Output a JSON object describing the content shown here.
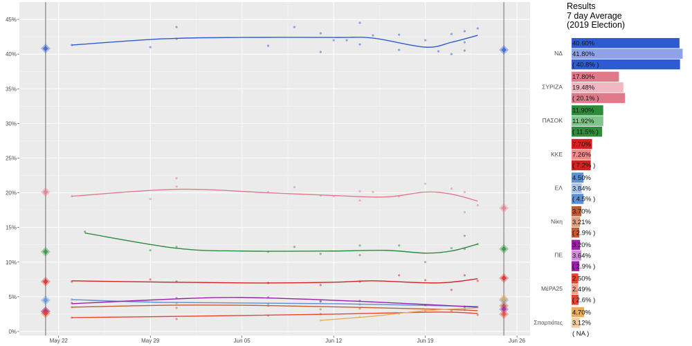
{
  "chart_data": {
    "type": "line",
    "title_lines": [
      "Results",
      "7 day Average",
      "(2019 Election)"
    ],
    "y_ticks": [
      0,
      5,
      10,
      15,
      20,
      25,
      30,
      35,
      40,
      45
    ],
    "y_tick_format": "%",
    "ylim": [
      -0.6,
      47.5
    ],
    "x_ticks": [
      {
        "date": "2023-05-22",
        "label": "May 22"
      },
      {
        "date": "2023-05-29",
        "label": "May 29"
      },
      {
        "date": "2023-06-05",
        "label": "Jun 05"
      },
      {
        "date": "2023-06-12",
        "label": "Jun 12"
      },
      {
        "date": "2023-06-19",
        "label": "Jun 19"
      },
      {
        "date": "2023-06-26",
        "label": "Jun 26"
      }
    ],
    "xlim": [
      "2023-05-19",
      "2023-06-27"
    ],
    "grid": true,
    "vlines": [
      "2023-05-21",
      "2023-06-25"
    ],
    "series": [
      {
        "name": "ΝΔ",
        "color": "#2f5bd0",
        "light": "#8ea2e6",
        "prev": 40.8,
        "result": 40.6,
        "trend": [
          [
            "2023-05-23",
            41.3
          ],
          [
            "2023-05-30",
            42.2
          ],
          [
            "2023-06-05",
            42.4
          ],
          [
            "2023-06-12",
            42.4
          ],
          [
            "2023-06-15",
            42.3
          ],
          [
            "2023-06-19",
            41.0
          ],
          [
            "2023-06-21",
            41.7
          ],
          [
            "2023-06-23",
            42.7
          ]
        ],
        "points": [
          [
            "2023-05-23",
            41.3
          ],
          [
            "2023-05-29",
            41.0
          ],
          [
            "2023-05-31",
            43.9
          ],
          [
            "2023-05-31",
            42.2
          ],
          [
            "2023-06-07",
            41.2
          ],
          [
            "2023-06-09",
            43.9
          ],
          [
            "2023-06-11",
            43.0
          ],
          [
            "2023-06-11",
            40.3
          ],
          [
            "2023-06-12",
            42.0
          ],
          [
            "2023-06-13",
            42.0
          ],
          [
            "2023-06-14",
            44.5
          ],
          [
            "2023-06-14",
            41.4
          ],
          [
            "2023-06-15",
            42.7
          ],
          [
            "2023-06-17",
            42.8
          ],
          [
            "2023-06-17",
            40.6
          ],
          [
            "2023-06-19",
            42.0
          ],
          [
            "2023-06-20",
            40.4
          ],
          [
            "2023-06-21",
            42.9
          ],
          [
            "2023-06-21",
            40.0
          ],
          [
            "2023-06-22",
            43.3
          ],
          [
            "2023-06-22",
            40.5
          ],
          [
            "2023-06-22",
            41.7
          ],
          [
            "2023-06-23",
            43.7
          ]
        ]
      },
      {
        "name": "ΣΥΡΙΖΑ",
        "color": "#e07a8b",
        "light": "#f2b8c2",
        "prev": 20.1,
        "result": 17.8,
        "trend": [
          [
            "2023-05-23",
            19.5
          ],
          [
            "2023-05-31",
            20.5
          ],
          [
            "2023-06-07",
            20.0
          ],
          [
            "2023-06-12",
            19.6
          ],
          [
            "2023-06-16",
            19.4
          ],
          [
            "2023-06-19",
            20.1
          ],
          [
            "2023-06-21",
            19.8
          ],
          [
            "2023-06-23",
            18.8
          ]
        ],
        "points": [
          [
            "2023-05-23",
            19.5
          ],
          [
            "2023-05-29",
            19.1
          ],
          [
            "2023-05-31",
            22.1
          ],
          [
            "2023-05-31",
            20.9
          ],
          [
            "2023-06-07",
            20.1
          ],
          [
            "2023-06-09",
            20.8
          ],
          [
            "2023-06-11",
            19.6
          ],
          [
            "2023-06-12",
            19.5
          ],
          [
            "2023-06-14",
            20.2
          ],
          [
            "2023-06-14",
            18.9
          ],
          [
            "2023-06-15",
            20.1
          ],
          [
            "2023-06-17",
            19.5
          ],
          [
            "2023-06-19",
            21.3
          ],
          [
            "2023-06-21",
            20.6
          ],
          [
            "2023-06-22",
            20.1
          ],
          [
            "2023-06-22",
            17.2
          ],
          [
            "2023-06-23",
            18.2
          ]
        ]
      },
      {
        "name": "ΠΑΣΟΚ",
        "color": "#2e8b3a",
        "light": "#7fc48a",
        "prev": 11.5,
        "result": 11.9,
        "trend": [
          [
            "2023-05-24",
            14.2
          ],
          [
            "2023-05-31",
            12.0
          ],
          [
            "2023-06-05",
            11.6
          ],
          [
            "2023-06-12",
            11.6
          ],
          [
            "2023-06-16",
            11.7
          ],
          [
            "2023-06-19",
            11.3
          ],
          [
            "2023-06-21",
            11.6
          ],
          [
            "2023-06-23",
            12.6
          ]
        ],
        "points": [
          [
            "2023-05-24",
            14.4
          ],
          [
            "2023-05-29",
            11.7
          ],
          [
            "2023-05-31",
            12.2
          ],
          [
            "2023-06-07",
            11.5
          ],
          [
            "2023-06-09",
            12.2
          ],
          [
            "2023-06-11",
            11.2
          ],
          [
            "2023-06-14",
            12.4
          ],
          [
            "2023-06-14",
            11.0
          ],
          [
            "2023-06-17",
            12.4
          ],
          [
            "2023-06-19",
            10.0
          ],
          [
            "2023-06-21",
            12.0
          ],
          [
            "2023-06-22",
            13.8
          ],
          [
            "2023-06-22",
            11.9
          ],
          [
            "2023-06-23",
            12.6
          ]
        ]
      },
      {
        "name": "ΚΚΕ",
        "color": "#d42020",
        "light": "#ee8a8a",
        "prev": 7.2,
        "result": 7.7,
        "trend": [
          [
            "2023-05-23",
            7.3
          ],
          [
            "2023-06-05",
            7.0
          ],
          [
            "2023-06-12",
            7.1
          ],
          [
            "2023-06-15",
            7.3
          ],
          [
            "2023-06-20",
            7.0
          ],
          [
            "2023-06-23",
            7.6
          ]
        ],
        "points": [
          [
            "2023-05-23",
            7.2
          ],
          [
            "2023-05-29",
            7.5
          ],
          [
            "2023-05-31",
            7.2
          ],
          [
            "2023-06-07",
            7.0
          ],
          [
            "2023-06-11",
            6.7
          ],
          [
            "2023-06-14",
            7.2
          ],
          [
            "2023-06-17",
            8.1
          ],
          [
            "2023-06-19",
            7.4
          ],
          [
            "2023-06-21",
            6.0
          ],
          [
            "2023-06-22",
            8.1
          ],
          [
            "2023-06-23",
            7.3
          ]
        ]
      },
      {
        "name": "ΕΛ",
        "color": "#5b8fd6",
        "light": "#a8c4ea",
        "prev": 4.5,
        "result": 4.5,
        "trend": [
          [
            "2023-05-23",
            4.6
          ],
          [
            "2023-05-30",
            4.2
          ],
          [
            "2023-06-12",
            4.0
          ],
          [
            "2023-06-23",
            3.6
          ]
        ],
        "points": [
          [
            "2023-05-23",
            4.6
          ],
          [
            "2023-05-31",
            4.1
          ],
          [
            "2023-06-07",
            4.0
          ],
          [
            "2023-06-11",
            4.4
          ],
          [
            "2023-06-14",
            3.9
          ],
          [
            "2023-06-19",
            3.8
          ],
          [
            "2023-06-22",
            3.4
          ],
          [
            "2023-06-23",
            3.5
          ]
        ]
      },
      {
        "name": "Νίκη",
        "color": "#c25a32",
        "light": "#e0a080",
        "prev": 2.9,
        "result": 3.7,
        "trend": [
          [
            "2023-05-23",
            3.5
          ],
          [
            "2023-05-31",
            3.8
          ],
          [
            "2023-06-08",
            3.7
          ],
          [
            "2023-06-20",
            3.2
          ],
          [
            "2023-06-23",
            3.0
          ]
        ],
        "points": [
          [
            "2023-05-23",
            3.5
          ],
          [
            "2023-05-31",
            3.4
          ],
          [
            "2023-06-07",
            3.7
          ],
          [
            "2023-06-11",
            3.2
          ],
          [
            "2023-06-14",
            3.3
          ],
          [
            "2023-06-19",
            3.0
          ],
          [
            "2023-06-22",
            3.1
          ]
        ]
      },
      {
        "name": "ΠΕ",
        "color": "#9b1fa8",
        "light": "#d58ade",
        "prev": 2.9,
        "result": 3.2,
        "trend": [
          [
            "2023-05-23",
            4.0
          ],
          [
            "2023-05-31",
            4.7
          ],
          [
            "2023-06-05",
            4.9
          ],
          [
            "2023-06-12",
            4.5
          ],
          [
            "2023-06-19",
            3.9
          ],
          [
            "2023-06-23",
            3.5
          ]
        ],
        "points": [
          [
            "2023-05-23",
            4.1
          ],
          [
            "2023-05-31",
            4.8
          ],
          [
            "2023-06-07",
            4.9
          ],
          [
            "2023-06-11",
            4.3
          ],
          [
            "2023-06-14",
            4.4
          ],
          [
            "2023-06-19",
            3.8
          ],
          [
            "2023-06-22",
            3.6
          ]
        ]
      },
      {
        "name": "ΜέΡΑ25",
        "color": "#e8442c",
        "light": "#f2a090",
        "prev": 2.6,
        "result": 2.5,
        "trend": [
          [
            "2023-05-23",
            2.0
          ],
          [
            "2023-06-01",
            2.2
          ],
          [
            "2023-06-12",
            2.5
          ],
          [
            "2023-06-20",
            2.8
          ],
          [
            "2023-06-23",
            2.6
          ]
        ],
        "points": [
          [
            "2023-05-23",
            2.0
          ],
          [
            "2023-05-31",
            1.8
          ],
          [
            "2023-06-07",
            2.3
          ],
          [
            "2023-06-11",
            2.5
          ],
          [
            "2023-06-17",
            2.6
          ],
          [
            "2023-06-21",
            3.0
          ],
          [
            "2023-06-23",
            2.4
          ]
        ]
      },
      {
        "name": "Σπαρτιάτες",
        "color": "#e8ac5a",
        "light": "#f0d0a0",
        "prev": null,
        "result": 4.7,
        "trend": [
          [
            "2023-06-11",
            1.6
          ],
          [
            "2023-06-15",
            2.2
          ],
          [
            "2023-06-19",
            3.0
          ],
          [
            "2023-06-23",
            3.4
          ]
        ],
        "points": [
          [
            "2023-06-11",
            1.6
          ],
          [
            "2023-06-14",
            2.1
          ],
          [
            "2023-06-17",
            2.6
          ],
          [
            "2023-06-19",
            3.1
          ],
          [
            "2023-06-22",
            3.3
          ]
        ]
      }
    ],
    "bars": [
      {
        "party": "ΝΔ",
        "result": 40.6,
        "result_label": "40.60%",
        "avg": 41.8,
        "avg_label": "41.80%",
        "prev": 40.8,
        "prev_label": "( 40.8% )"
      },
      {
        "party": "ΣΥΡΙΖΑ",
        "result": 17.8,
        "result_label": "17.80%",
        "avg": 19.48,
        "avg_label": "19.48%",
        "prev": 20.1,
        "prev_label": "( 20.1% )"
      },
      {
        "party": "ΠΑΣΟΚ",
        "result": 11.9,
        "result_label": "11.90%",
        "avg": 11.92,
        "avg_label": "11.92%",
        "prev": 11.5,
        "prev_label": "( 11.5% )"
      },
      {
        "party": "ΚΚΕ",
        "result": 7.7,
        "result_label": "7.70%",
        "avg": 7.26,
        "avg_label": "7.26%",
        "prev": 7.2,
        "prev_label": "( 7.2% )"
      },
      {
        "party": "ΕΛ",
        "result": 4.5,
        "result_label": "4.50%",
        "avg": 3.84,
        "avg_label": "3.84%",
        "prev": 4.5,
        "prev_label": "( 4.5% )"
      },
      {
        "party": "Νίκη",
        "result": 3.7,
        "result_label": "3.70%",
        "avg": 3.21,
        "avg_label": "3.21%",
        "prev": 2.9,
        "prev_label": "( 2.9% )"
      },
      {
        "party": "ΠΕ",
        "result": 3.2,
        "result_label": "3.20%",
        "avg": 3.64,
        "avg_label": "3.64%",
        "prev": 2.9,
        "prev_label": "( 2.9% )"
      },
      {
        "party": "ΜέΡΑ25",
        "result": 2.5,
        "result_label": "2.50%",
        "avg": 2.49,
        "avg_label": "2.49%",
        "prev": 2.6,
        "prev_label": "( 2.6% )"
      },
      {
        "party": "Σπαρτιάτες",
        "result": 4.7,
        "result_label": "4.70%",
        "avg": 3.12,
        "avg_label": "3.12%",
        "prev": null,
        "prev_label": "( NA )"
      }
    ]
  }
}
